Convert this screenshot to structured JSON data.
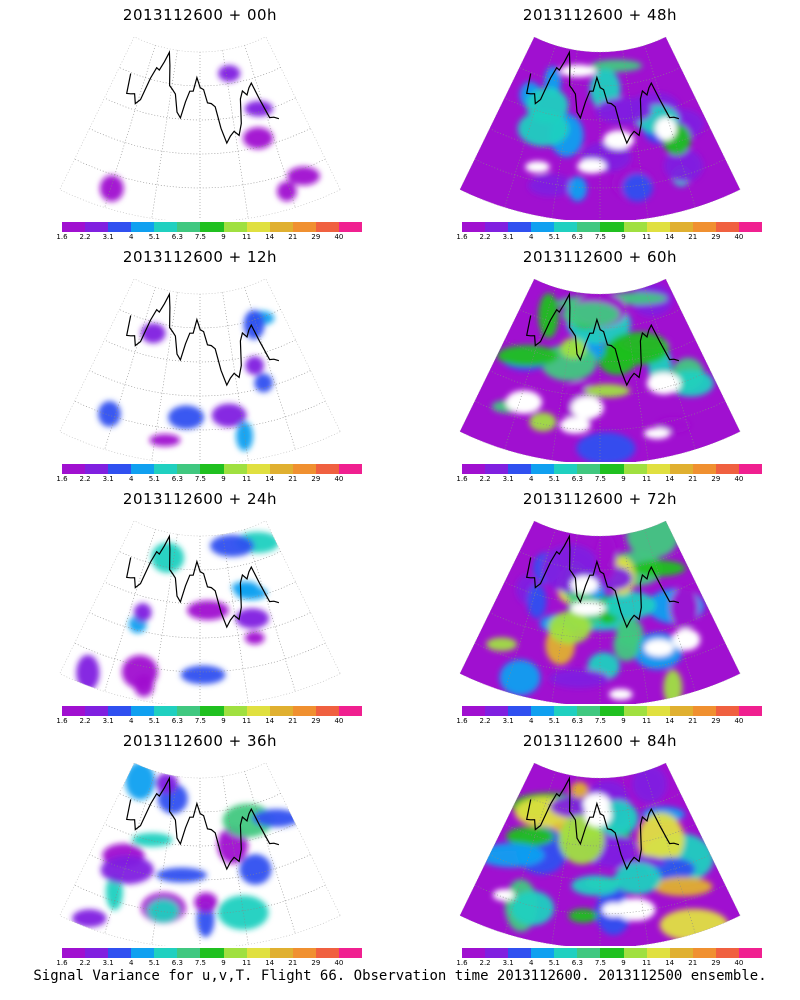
{
  "caption": "Signal Variance for u,v,T. Flight 66. Observation time 2013112600. 2013112500 ensemble.",
  "colorbar": {
    "colors": [
      "#a010d0",
      "#8020e0",
      "#3050f0",
      "#10a0f0",
      "#20d0c0",
      "#40c880",
      "#20c020",
      "#a0e040",
      "#e0e040",
      "#e0b030",
      "#f09030",
      "#f06040",
      "#f02090"
    ],
    "labels": [
      "1.6",
      "2.2",
      "3.1",
      "4",
      "5.1",
      "6.3",
      "7.5",
      "9",
      "11",
      "14",
      "21",
      "29",
      "40"
    ]
  },
  "panels": [
    {
      "title": "2013112600 + 00h",
      "intensity": 0
    },
    {
      "title": "2013112600 + 48h",
      "intensity": 4
    },
    {
      "title": "2013112600 + 12h",
      "intensity": 1
    },
    {
      "title": "2013112600 + 60h",
      "intensity": 5
    },
    {
      "title": "2013112600 + 24h",
      "intensity": 2
    },
    {
      "title": "2013112600 + 72h",
      "intensity": 6
    },
    {
      "title": "2013112600 + 36h",
      "intensity": 3
    },
    {
      "title": "2013112600 + 84h",
      "intensity": 7
    }
  ]
}
